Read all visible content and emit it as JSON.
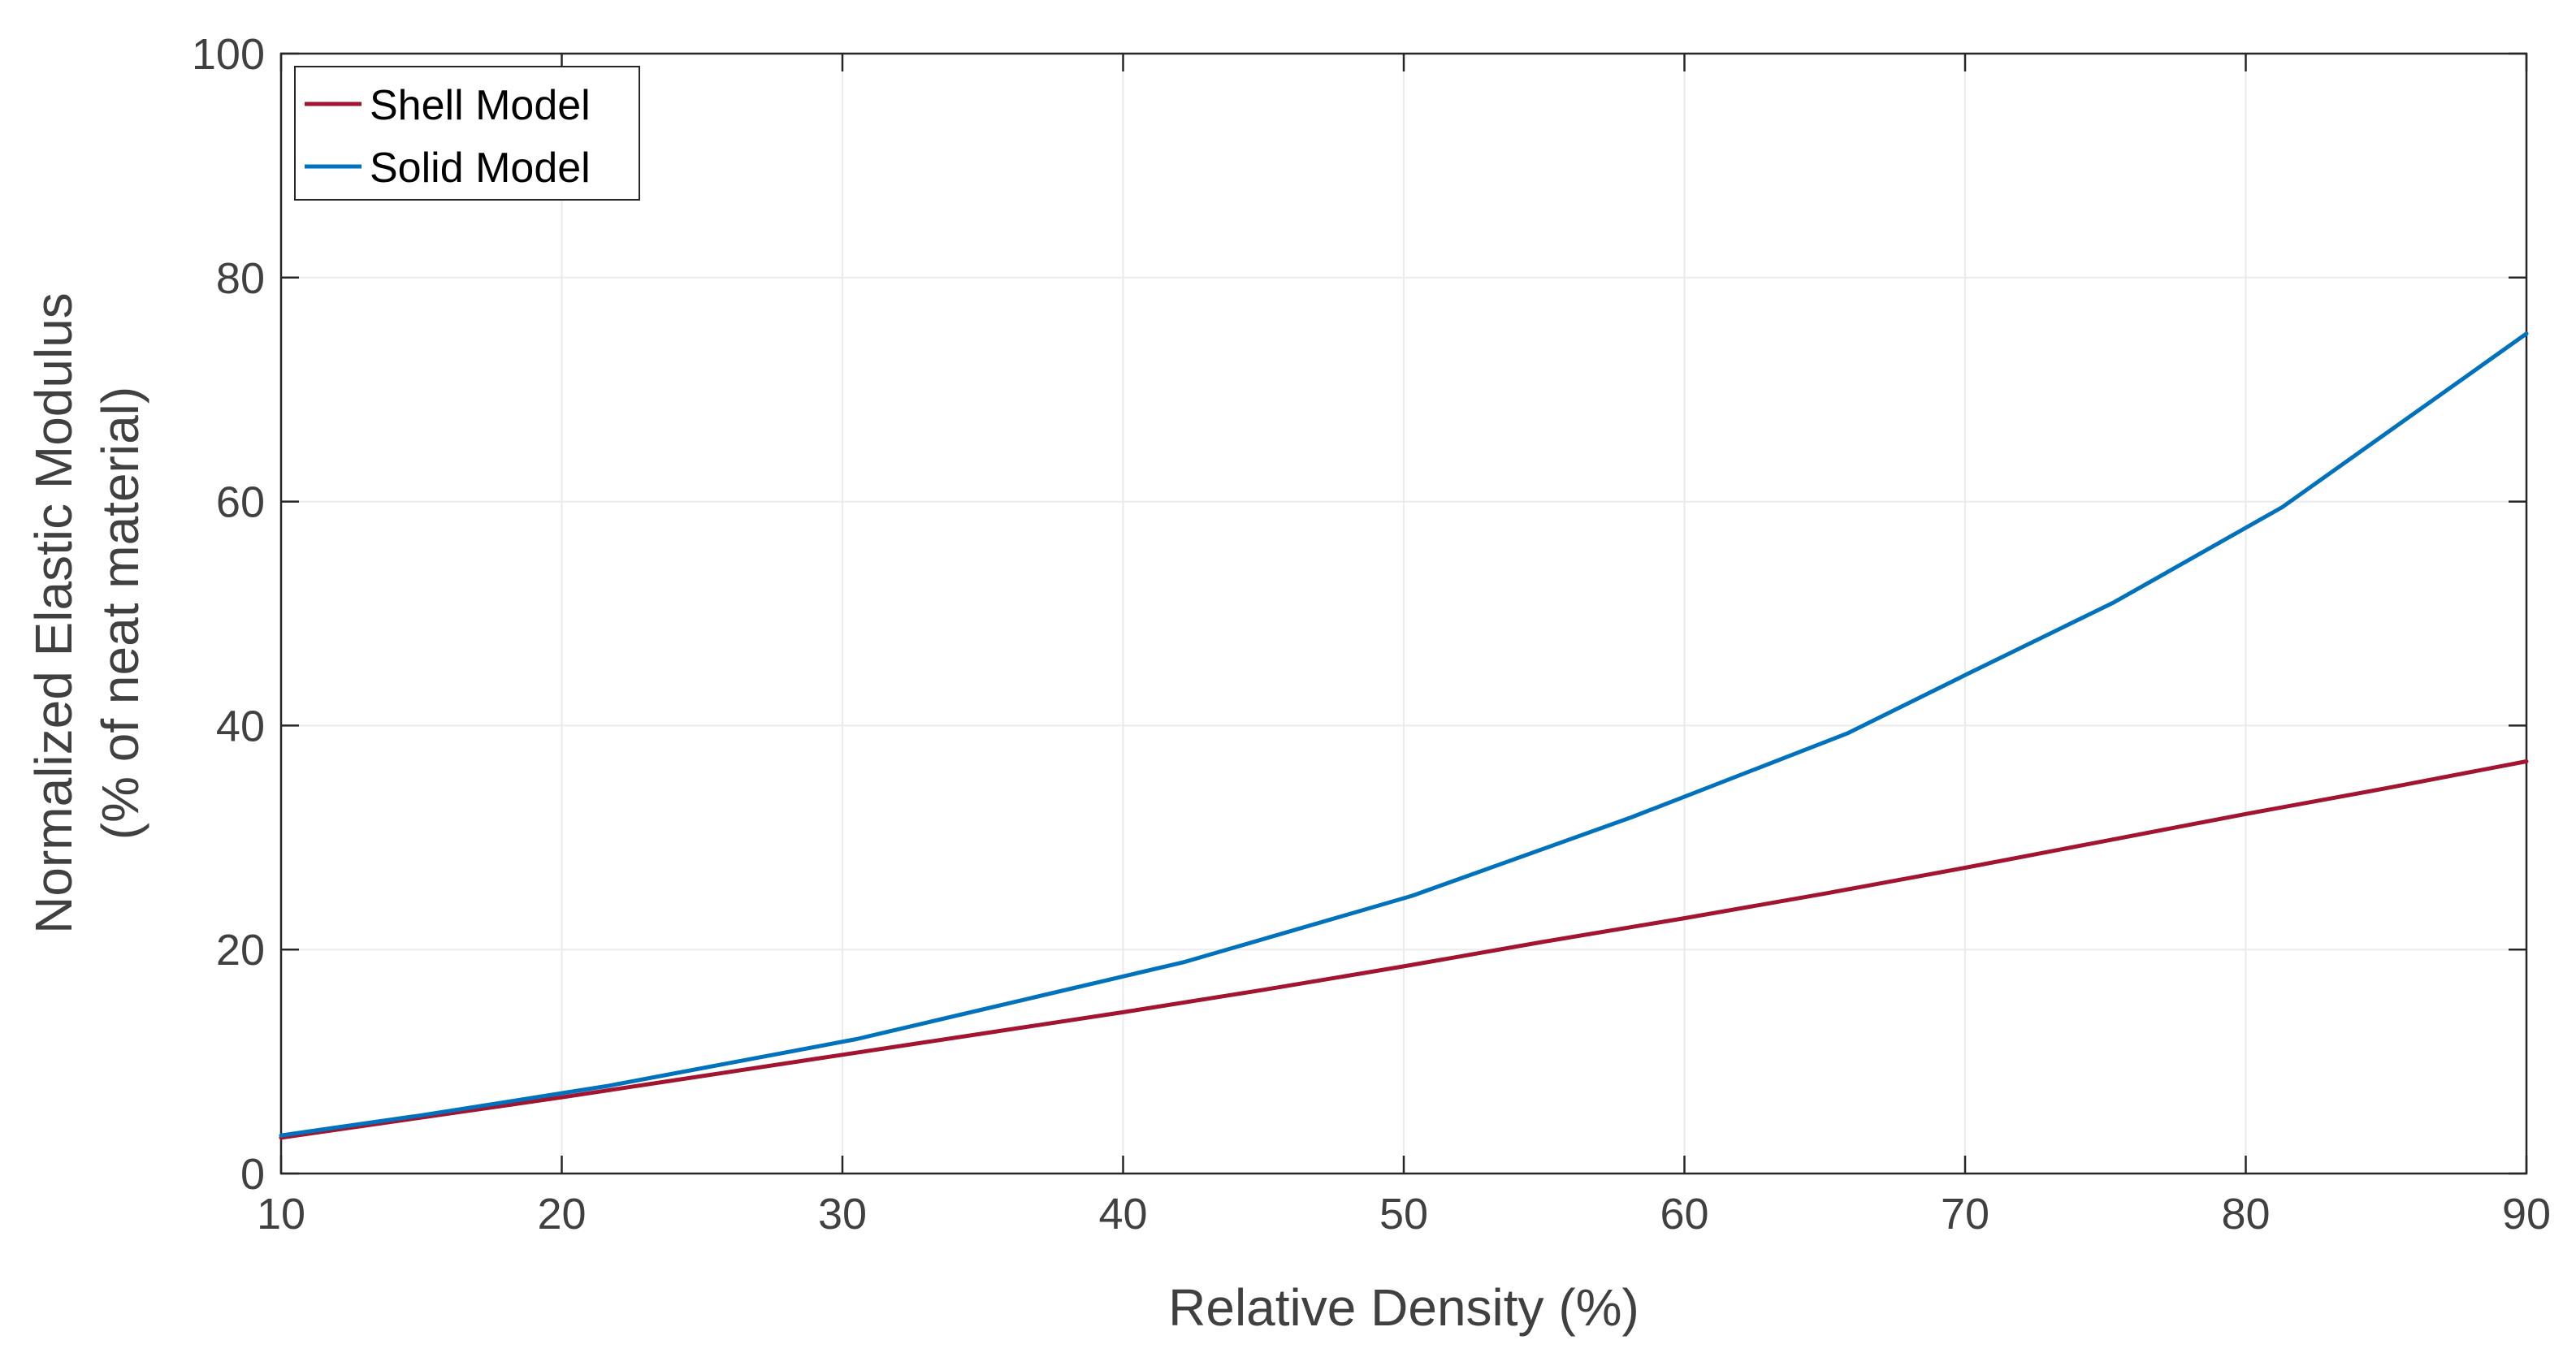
{
  "chart_data": {
    "type": "line",
    "title": "",
    "xlabel": "Relative Density (%)",
    "ylabel": [
      "Normalized Elastic Modulus",
      "(% of neat material)"
    ],
    "xlim": [
      10,
      90
    ],
    "ylim": [
      0,
      100
    ],
    "xticks": [
      10,
      20,
      30,
      40,
      50,
      60,
      70,
      80,
      90
    ],
    "yticks": [
      0,
      20,
      40,
      60,
      80,
      100
    ],
    "grid": true,
    "legend_position": "top-left",
    "series": [
      {
        "name": "Shell Model",
        "color": "#A2142F",
        "x": [
          10,
          15,
          20,
          25,
          30,
          35,
          40,
          45,
          50,
          55,
          60,
          65,
          70,
          75,
          80,
          85,
          90
        ],
        "y": [
          3.2,
          5.0,
          6.8,
          8.7,
          10.6,
          12.5,
          14.4,
          16.4,
          18.5,
          20.7,
          22.8,
          25.0,
          27.3,
          29.7,
          32.1,
          34.4,
          36.8
        ]
      },
      {
        "name": "Solid Model",
        "color": "#0072BD",
        "x": [
          10,
          15,
          21.6,
          30.5,
          42.2,
          50.3,
          58.1,
          65.8,
          70,
          75.3,
          81.3,
          90
        ],
        "y": [
          3.4,
          5.2,
          7.8,
          12.0,
          18.9,
          24.8,
          31.8,
          39.3,
          44.5,
          51.0,
          59.5,
          75.0
        ]
      }
    ]
  }
}
